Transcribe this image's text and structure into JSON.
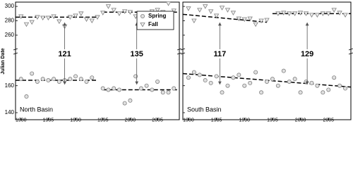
{
  "chart_data": [
    {
      "type": "scatter",
      "title": "North Basin",
      "y_label": "Julian Date",
      "xlim": [
        1979,
        2009
      ],
      "xticks": [
        1980,
        1985,
        1990,
        1995,
        2000,
        2005
      ],
      "ylim": [
        [
          140,
          175
        ],
        [
          258,
          305
        ]
      ],
      "yticks": [
        140,
        160,
        260,
        280,
        300
      ],
      "legend": "upper right",
      "annotations": [
        "121",
        "135"
      ],
      "series": [
        {
          "name": "Spring",
          "marker": "circle",
          "color": "#808080",
          "x": [
            1980,
            1981,
            1982,
            1983,
            1984,
            1985,
            1986,
            1987,
            1988,
            1989,
            1990,
            1991,
            1992,
            1993,
            1995,
            1996,
            1997,
            1998,
            1999,
            2000,
            2001,
            2002,
            2003,
            2004,
            2005,
            2006,
            2007,
            2008
          ],
          "values": [
            165,
            152,
            169,
            163,
            165,
            164,
            165,
            163,
            164,
            165,
            167,
            165,
            163,
            166,
            158,
            157,
            158,
            157,
            147,
            149,
            167,
            158,
            160,
            157,
            163,
            155,
            155,
            158
          ],
          "trend": [
            {
              "x": [
                1979,
                1994
              ],
              "y": [
                164,
                164
              ]
            },
            {
              "x": [
                1995,
                2009
              ],
              "y": [
                157,
                157
              ]
            }
          ]
        },
        {
          "name": "Fall",
          "marker": "triangle",
          "color": "#808080",
          "x": [
            1980,
            1981,
            1982,
            1983,
            1984,
            1985,
            1986,
            1987,
            1988,
            1989,
            1990,
            1991,
            1992,
            1993,
            1994,
            1995,
            1996,
            1997,
            1998,
            1999,
            2000,
            2001,
            2002,
            2003,
            2004,
            2005,
            2006,
            2007,
            2008
          ],
          "values": [
            286,
            275,
            278,
            285,
            284,
            284,
            286,
            279,
            272,
            285,
            287,
            290,
            282,
            280,
            285,
            291,
            300,
            295,
            290,
            293,
            292,
            286,
            290,
            290,
            293,
            295,
            292,
            304,
            294
          ],
          "trend": [
            {
              "x": [
                1979,
                1994
              ],
              "y": [
                285,
                285
              ]
            },
            {
              "x": [
                1995,
                2009
              ],
              "y": [
                292,
                292
              ]
            }
          ]
        }
      ]
    },
    {
      "type": "scatter",
      "title": "South Basin",
      "xlim": [
        1979,
        2009
      ],
      "xticks": [
        1980,
        1985,
        1990,
        1995,
        2000,
        2005
      ],
      "ylim": [
        [
          140,
          175
        ],
        [
          258,
          305
        ]
      ],
      "yticks": [
        140,
        160,
        260,
        280,
        300
      ],
      "annotations": [
        "117",
        "129"
      ],
      "series": [
        {
          "name": "Spring",
          "marker": "circle",
          "color": "#808080",
          "x": [
            1980,
            1981,
            1982,
            1983,
            1984,
            1985,
            1986,
            1987,
            1988,
            1989,
            1990,
            1991,
            1992,
            1993,
            1994,
            1995,
            1996,
            1997,
            1998,
            1999,
            2000,
            2001,
            2002,
            2003,
            2004,
            2005,
            2006,
            2007,
            2008
          ],
          "values": [
            166,
            170,
            168,
            164,
            162,
            167,
            155,
            160,
            166,
            168,
            160,
            162,
            170,
            155,
            163,
            165,
            160,
            171,
            163,
            165,
            155,
            163,
            162,
            160,
            155,
            157,
            166,
            160,
            158
          ],
          "trend": [
            {
              "x": [
                1979,
                2009
              ],
              "y": [
                169,
                159
              ]
            }
          ]
        },
        {
          "name": "Fall",
          "marker": "triangle",
          "color": "#808080",
          "x": [
            1980,
            1981,
            1982,
            1983,
            1984,
            1985,
            1986,
            1987,
            1988,
            1989,
            1990,
            1991,
            1992,
            1993,
            1994,
            1996,
            1997,
            1998,
            1999,
            2000,
            2001,
            2002,
            2003,
            2004,
            2005,
            2006,
            2007,
            2008
          ],
          "values": [
            297,
            280,
            295,
            300,
            293,
            287,
            298,
            295,
            291,
            283,
            282,
            283,
            275,
            280,
            281,
            290,
            291,
            290,
            290,
            291,
            290,
            288,
            288,
            290,
            290,
            295,
            291,
            288
          ],
          "trend": [
            {
              "x": [
                1979,
                1994
              ],
              "y": [
                289,
                278
              ]
            },
            {
              "x": [
                1995,
                2009
              ],
              "y": [
                290,
                290
              ]
            }
          ]
        }
      ]
    }
  ]
}
